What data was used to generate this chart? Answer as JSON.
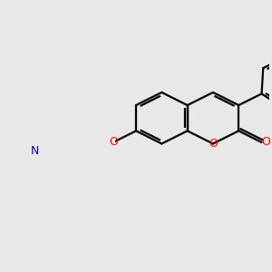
{
  "background_color": "#e8e8e8",
  "bond_color": "#000000",
  "oxygen_color": "#ff0000",
  "nitrogen_color": "#0000bb",
  "line_width": 1.6,
  "figsize": [
    3.0,
    3.0
  ],
  "dpi": 100,
  "xlim": [
    -2.8,
    3.2
  ],
  "ylim": [
    -3.2,
    2.8
  ]
}
